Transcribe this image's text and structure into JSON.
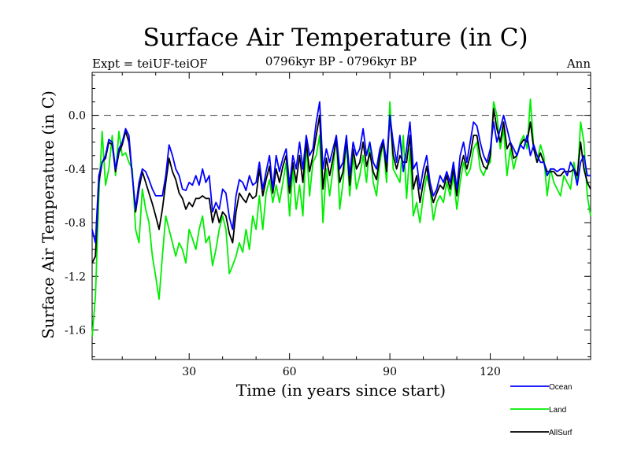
{
  "chart_data": {
    "type": "line",
    "title": "Surface Air Temperature (in C)",
    "subtitle_left": "Expt = teiUF-teiOF",
    "subtitle_center": "0796kyr BP - 0796kyr BP",
    "subtitle_right": "Ann",
    "xlabel": "Time (in years since start)",
    "ylabel": "Surface Air Temperature (in C)",
    "xlim": [
      1,
      150
    ],
    "ylim": [
      -1.82,
      0.32
    ],
    "x_ticks": [
      30,
      60,
      90,
      120
    ],
    "x_tick_labels": [
      "30",
      "60",
      "90",
      "120"
    ],
    "y_ticks": [
      0.0,
      -0.4,
      -0.8,
      -1.2,
      -1.6
    ],
    "y_tick_labels": [
      "0.0",
      "-0.4",
      "-0.8",
      "-1.2",
      "-1.6"
    ],
    "reference_line": 0.0,
    "x": [
      1,
      2,
      3,
      4,
      5,
      6,
      7,
      8,
      9,
      10,
      11,
      12,
      13,
      14,
      15,
      16,
      17,
      18,
      19,
      20,
      21,
      22,
      23,
      24,
      25,
      26,
      27,
      28,
      29,
      30,
      31,
      32,
      33,
      34,
      35,
      36,
      37,
      38,
      39,
      40,
      41,
      42,
      43,
      44,
      45,
      46,
      47,
      48,
      49,
      50,
      51,
      52,
      53,
      54,
      55,
      56,
      57,
      58,
      59,
      60,
      61,
      62,
      63,
      64,
      65,
      66,
      67,
      68,
      69,
      70,
      71,
      72,
      73,
      74,
      75,
      76,
      77,
      78,
      79,
      80,
      81,
      82,
      83,
      84,
      85,
      86,
      87,
      88,
      89,
      90,
      91,
      92,
      93,
      94,
      95,
      96,
      97,
      98,
      99,
      100,
      101,
      102,
      103,
      104,
      105,
      106,
      107,
      108,
      109,
      110,
      111,
      112,
      113,
      114,
      115,
      116,
      117,
      118,
      119,
      120,
      121,
      122,
      123,
      124,
      125,
      126,
      127,
      128,
      129,
      130,
      131,
      132,
      133,
      134,
      135,
      136,
      137,
      138,
      139,
      140,
      141,
      142,
      143,
      144,
      145,
      146,
      147,
      148,
      149,
      150
    ],
    "series": [
      {
        "name": "Ocean",
        "color": "#0000ff",
        "values": [
          -0.85,
          -0.95,
          -0.45,
          -0.35,
          -0.3,
          -0.18,
          -0.2,
          -0.4,
          -0.25,
          -0.2,
          -0.1,
          -0.15,
          -0.45,
          -0.7,
          -0.5,
          -0.4,
          -0.42,
          -0.48,
          -0.55,
          -0.6,
          -0.6,
          -0.6,
          -0.45,
          -0.22,
          -0.3,
          -0.4,
          -0.45,
          -0.55,
          -0.56,
          -0.5,
          -0.52,
          -0.45,
          -0.52,
          -0.4,
          -0.5,
          -0.45,
          -0.72,
          -0.65,
          -0.7,
          -0.55,
          -0.58,
          -0.76,
          -0.85,
          -0.6,
          -0.48,
          -0.5,
          -0.56,
          -0.45,
          -0.52,
          -0.5,
          -0.35,
          -0.55,
          -0.42,
          -0.3,
          -0.55,
          -0.3,
          -0.42,
          -0.32,
          -0.25,
          -0.52,
          -0.3,
          -0.4,
          -0.2,
          -0.4,
          -0.15,
          -0.3,
          -0.25,
          -0.05,
          0.1,
          -0.4,
          -0.25,
          -0.35,
          -0.25,
          -0.15,
          -0.4,
          -0.35,
          -0.15,
          -0.45,
          -0.2,
          -0.3,
          -0.25,
          -0.1,
          -0.3,
          -0.2,
          -0.35,
          -0.4,
          -0.25,
          -0.18,
          -0.35,
          0.0,
          -0.2,
          -0.35,
          -0.15,
          -0.42,
          -0.25,
          -0.05,
          -0.4,
          -0.35,
          -0.55,
          -0.4,
          -0.3,
          -0.5,
          -0.6,
          -0.55,
          -0.45,
          -0.5,
          -0.42,
          -0.5,
          -0.35,
          -0.55,
          -0.3,
          -0.2,
          -0.35,
          -0.2,
          -0.05,
          -0.08,
          -0.2,
          -0.3,
          -0.35,
          -0.25,
          -0.05,
          -0.2,
          -0.1,
          0.0,
          -0.1,
          -0.2,
          -0.25,
          -0.3,
          -0.22,
          -0.25,
          -0.15,
          -0.3,
          -0.22,
          -0.3,
          -0.35,
          -0.35,
          -0.45,
          -0.4,
          -0.4,
          -0.42,
          -0.4,
          -0.4,
          -0.45,
          -0.35,
          -0.4,
          -0.52,
          -0.35,
          -0.3,
          -0.45,
          -0.45
        ]
      },
      {
        "name": "Land",
        "color": "#00ee00",
        "values": [
          -1.65,
          -1.35,
          -0.6,
          -0.12,
          -0.52,
          -0.4,
          -0.15,
          -0.45,
          -0.12,
          -0.3,
          -0.28,
          -0.35,
          -0.4,
          -0.85,
          -0.95,
          -0.55,
          -0.7,
          -0.8,
          -1.05,
          -1.2,
          -1.37,
          -1.05,
          -0.75,
          -0.85,
          -0.95,
          -1.05,
          -0.95,
          -1.0,
          -1.1,
          -0.85,
          -0.92,
          -1.0,
          -0.85,
          -0.75,
          -0.95,
          -0.9,
          -1.12,
          -1.0,
          -0.85,
          -0.75,
          -0.85,
          -1.18,
          -1.12,
          -1.05,
          -0.95,
          -1.02,
          -0.85,
          -1.0,
          -0.75,
          -0.85,
          -0.6,
          -0.85,
          -0.58,
          -0.48,
          -0.65,
          -0.52,
          -0.65,
          -0.5,
          -0.35,
          -0.75,
          -0.4,
          -0.7,
          -0.52,
          -0.75,
          -0.2,
          -0.6,
          -0.35,
          -0.3,
          -0.15,
          -0.8,
          -0.4,
          -0.6,
          -0.4,
          -0.15,
          -0.7,
          -0.5,
          -0.2,
          -0.6,
          -0.3,
          -0.55,
          -0.45,
          -0.3,
          -0.5,
          -0.2,
          -0.5,
          -0.6,
          -0.35,
          -0.2,
          -0.5,
          0.1,
          -0.4,
          -0.45,
          -0.5,
          -0.15,
          -0.62,
          -0.25,
          -0.75,
          -0.65,
          -0.8,
          -0.6,
          -0.45,
          -0.55,
          -0.78,
          -0.65,
          -0.6,
          -0.65,
          -0.5,
          -0.6,
          -0.45,
          -0.7,
          -0.5,
          -0.35,
          -0.45,
          -0.4,
          -0.25,
          -0.2,
          -0.4,
          -0.45,
          -0.38,
          -0.35,
          0.1,
          0.0,
          -0.25,
          -0.1,
          -0.45,
          -0.25,
          -0.4,
          -0.3,
          -0.2,
          -0.15,
          -0.25,
          0.12,
          -0.25,
          -0.35,
          -0.22,
          -0.3,
          -0.6,
          -0.4,
          -0.5,
          -0.55,
          -0.6,
          -0.45,
          -0.5,
          -0.55,
          -0.35,
          -0.5,
          -0.05,
          -0.2,
          -0.6,
          -0.75
        ]
      },
      {
        "name": "AllSurf",
        "color": "#000000",
        "values": [
          -1.1,
          -1.05,
          -0.5,
          -0.35,
          -0.32,
          -0.2,
          -0.22,
          -0.42,
          -0.28,
          -0.22,
          -0.12,
          -0.2,
          -0.45,
          -0.72,
          -0.55,
          -0.42,
          -0.5,
          -0.58,
          -0.66,
          -0.75,
          -0.85,
          -0.7,
          -0.5,
          -0.32,
          -0.42,
          -0.48,
          -0.58,
          -0.62,
          -0.7,
          -0.65,
          -0.68,
          -0.62,
          -0.62,
          -0.6,
          -0.62,
          -0.62,
          -0.8,
          -0.7,
          -0.8,
          -0.72,
          -0.75,
          -0.88,
          -0.95,
          -0.72,
          -0.58,
          -0.62,
          -0.65,
          -0.58,
          -0.62,
          -0.6,
          -0.4,
          -0.6,
          -0.48,
          -0.38,
          -0.58,
          -0.4,
          -0.5,
          -0.38,
          -0.3,
          -0.58,
          -0.35,
          -0.5,
          -0.3,
          -0.5,
          -0.2,
          -0.42,
          -0.3,
          -0.15,
          0.0,
          -0.55,
          -0.32,
          -0.45,
          -0.32,
          -0.18,
          -0.5,
          -0.42,
          -0.18,
          -0.52,
          -0.25,
          -0.4,
          -0.35,
          -0.2,
          -0.38,
          -0.28,
          -0.42,
          -0.48,
          -0.3,
          -0.2,
          -0.42,
          0.0,
          -0.3,
          -0.4,
          -0.3,
          -0.35,
          -0.35,
          -0.15,
          -0.55,
          -0.45,
          -0.65,
          -0.5,
          -0.38,
          -0.55,
          -0.65,
          -0.58,
          -0.52,
          -0.55,
          -0.45,
          -0.55,
          -0.4,
          -0.6,
          -0.4,
          -0.3,
          -0.4,
          -0.3,
          -0.15,
          -0.15,
          -0.3,
          -0.38,
          -0.4,
          -0.3,
          0.05,
          -0.1,
          -0.2,
          -0.05,
          -0.25,
          -0.2,
          -0.32,
          -0.3,
          -0.22,
          -0.18,
          -0.2,
          -0.05,
          -0.25,
          -0.35,
          -0.28,
          -0.35,
          -0.42,
          -0.42,
          -0.42,
          -0.45,
          -0.45,
          -0.42,
          -0.42,
          -0.42,
          -0.4,
          -0.45,
          -0.2,
          -0.4,
          -0.5,
          -0.55
        ]
      }
    ],
    "legend": {
      "placement": "bottom-right",
      "entries": [
        "Ocean",
        "Land",
        "AllSurf"
      ]
    }
  }
}
